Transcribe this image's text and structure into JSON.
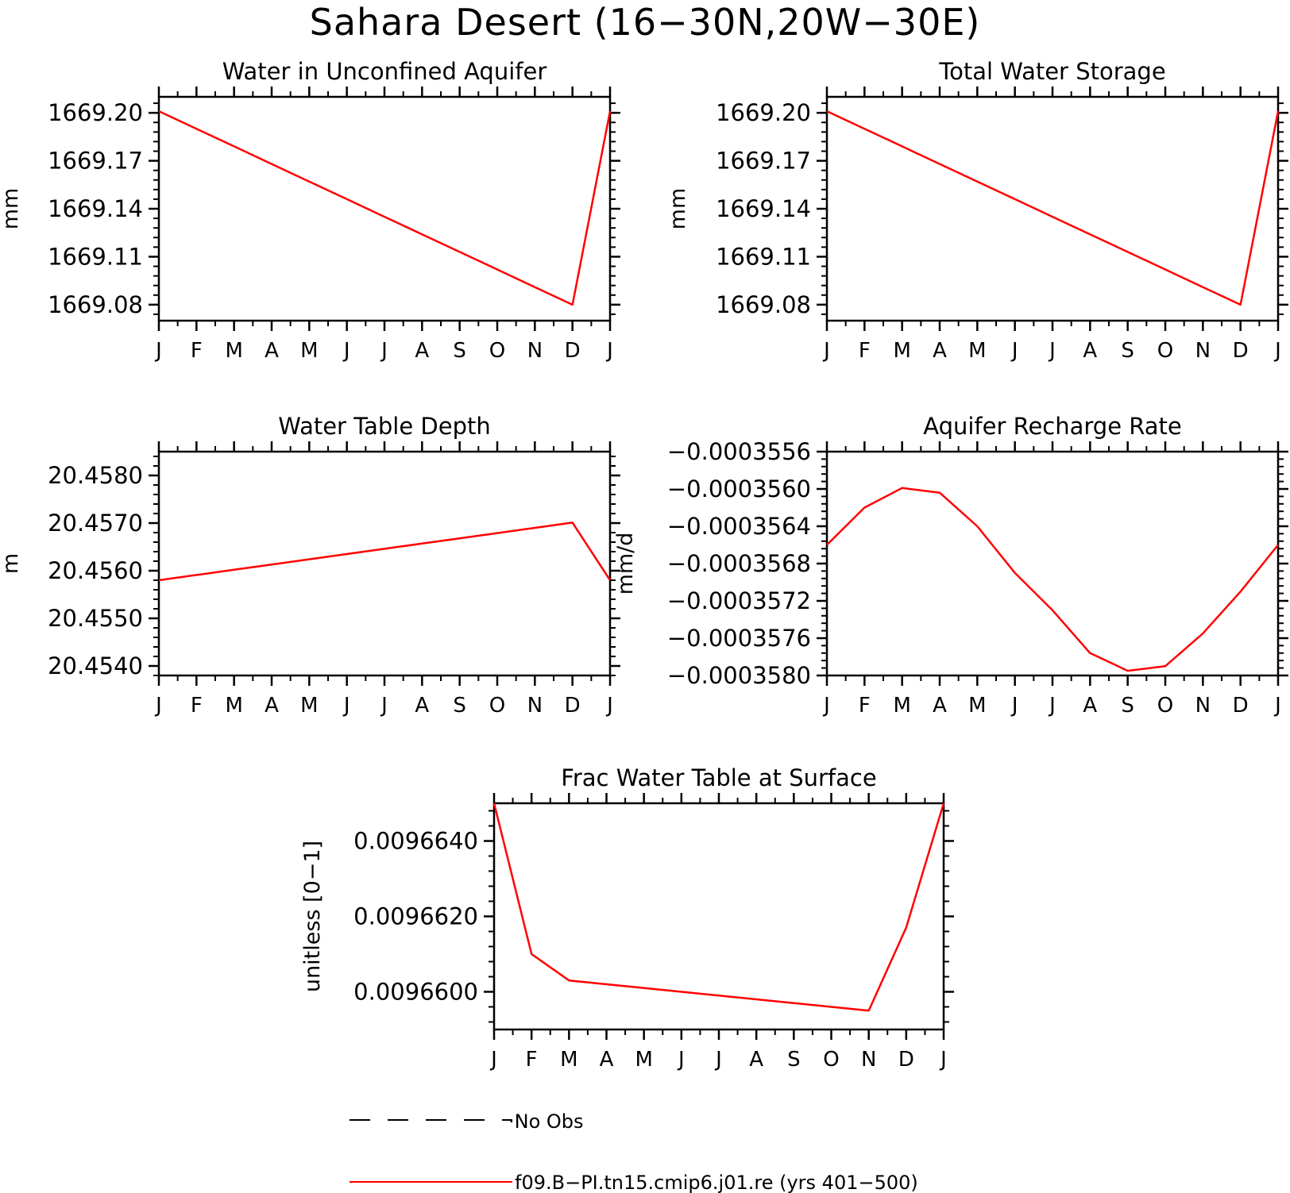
{
  "title": "Sahara Desert (16−30N,20W−30E)",
  "colors": {
    "model_line": "#ff0000",
    "axis": "#000000",
    "obs_line": "#000000"
  },
  "chart_data": [
    {
      "type": "line",
      "title": "Water in Unconfined Aquifer",
      "ylabel": "mm",
      "categories": [
        "J",
        "F",
        "M",
        "A",
        "M",
        "J",
        "J",
        "A",
        "S",
        "O",
        "N",
        "D",
        "J"
      ],
      "ylim": [
        1669.07,
        1669.21
      ],
      "yticks": [
        1669.08,
        1669.11,
        1669.14,
        1669.17,
        1669.2
      ],
      "ytick_labels": [
        "1669.08",
        "1669.11",
        "1669.14",
        "1669.17",
        "1669.20"
      ],
      "series": [
        {
          "name": "f09.B−PI.tn15.cmip6.j01.re (yrs 401−500)",
          "values": [
            1669.201,
            1669.19,
            1669.179,
            1669.168,
            1669.157,
            1669.146,
            1669.135,
            1669.124,
            1669.113,
            1669.102,
            1669.091,
            1669.08,
            1669.201
          ]
        }
      ]
    },
    {
      "type": "line",
      "title": "Total Water Storage",
      "ylabel": "mm",
      "categories": [
        "J",
        "F",
        "M",
        "A",
        "M",
        "J",
        "J",
        "A",
        "S",
        "O",
        "N",
        "D",
        "J"
      ],
      "ylim": [
        1669.07,
        1669.21
      ],
      "yticks": [
        1669.08,
        1669.11,
        1669.14,
        1669.17,
        1669.2
      ],
      "ytick_labels": [
        "1669.08",
        "1669.11",
        "1669.14",
        "1669.17",
        "1669.20"
      ],
      "series": [
        {
          "name": "f09.B−PI.tn15.cmip6.j01.re (yrs 401−500)",
          "values": [
            1669.201,
            1669.19,
            1669.179,
            1669.168,
            1669.157,
            1669.146,
            1669.135,
            1669.124,
            1669.113,
            1669.102,
            1669.091,
            1669.08,
            1669.201
          ]
        }
      ]
    },
    {
      "type": "line",
      "title": "Water Table Depth",
      "ylabel": "m",
      "categories": [
        "J",
        "F",
        "M",
        "A",
        "M",
        "J",
        "J",
        "A",
        "S",
        "O",
        "N",
        "D",
        "J"
      ],
      "ylim": [
        20.4538,
        20.4585
      ],
      "yticks": [
        20.454,
        20.455,
        20.456,
        20.457,
        20.458
      ],
      "ytick_labels": [
        "20.4540",
        "20.4550",
        "20.4560",
        "20.4570",
        "20.4580"
      ],
      "series": [
        {
          "name": "f09.B−PI.tn15.cmip6.j01.re (yrs 401−500)",
          "values": [
            20.4558,
            20.45591,
            20.45602,
            20.45613,
            20.45624,
            20.45635,
            20.45646,
            20.45657,
            20.45668,
            20.45679,
            20.4569,
            20.45701,
            20.4558
          ]
        }
      ]
    },
    {
      "type": "line",
      "title": "Aquifer Recharge Rate",
      "ylabel": "mm/d",
      "categories": [
        "J",
        "F",
        "M",
        "A",
        "M",
        "J",
        "J",
        "A",
        "S",
        "O",
        "N",
        "D",
        "J"
      ],
      "ylim": [
        -0.000358,
        -0.0003556
      ],
      "yticks": [
        -0.000358,
        -0.0003576,
        -0.0003572,
        -0.0003568,
        -0.0003564,
        -0.000356,
        -0.0003556
      ],
      "ytick_labels": [
        "−0.0003580",
        "−0.0003576",
        "−0.0003572",
        "−0.0003568",
        "−0.0003564",
        "−0.0003560",
        "−0.0003556"
      ],
      "series": [
        {
          "name": "f09.B−PI.tn15.cmip6.j01.re (yrs 401−500)",
          "values": [
            -0.0003566,
            -0.0003562,
            -0.00035599,
            -0.00035604,
            -0.0003564,
            -0.0003569,
            -0.0003573,
            -0.00035776,
            -0.00035795,
            -0.0003579,
            -0.00035755,
            -0.0003571,
            -0.0003566
          ]
        }
      ]
    },
    {
      "type": "line",
      "title": "Frac Water Table at Surface",
      "ylabel": "unitless [0−1]",
      "categories": [
        "J",
        "F",
        "M",
        "A",
        "M",
        "J",
        "J",
        "A",
        "S",
        "O",
        "N",
        "D",
        "J"
      ],
      "ylim": [
        0.009659,
        0.009665
      ],
      "yticks": [
        0.00966,
        0.009662,
        0.009664
      ],
      "ytick_labels": [
        "0.0096600",
        "0.0096620",
        "0.0096640"
      ],
      "series": [
        {
          "name": "f09.B−PI.tn15.cmip6.j01.re (yrs 401−500)",
          "values": [
            0.009665,
            0.009661,
            0.0096603,
            0.0096602,
            0.0096601,
            0.00966,
            0.0096599,
            0.0096598,
            0.0096597,
            0.0096596,
            0.0096595,
            0.0096617,
            0.009665
          ]
        }
      ]
    }
  ],
  "legend": {
    "placement": "bottom-center",
    "entries": [
      {
        "label": "No Obs",
        "style": "dashed"
      },
      {
        "label": "f09.B−PI.tn15.cmip6.j01.re (yrs 401−500)",
        "style": "solid"
      }
    ]
  }
}
